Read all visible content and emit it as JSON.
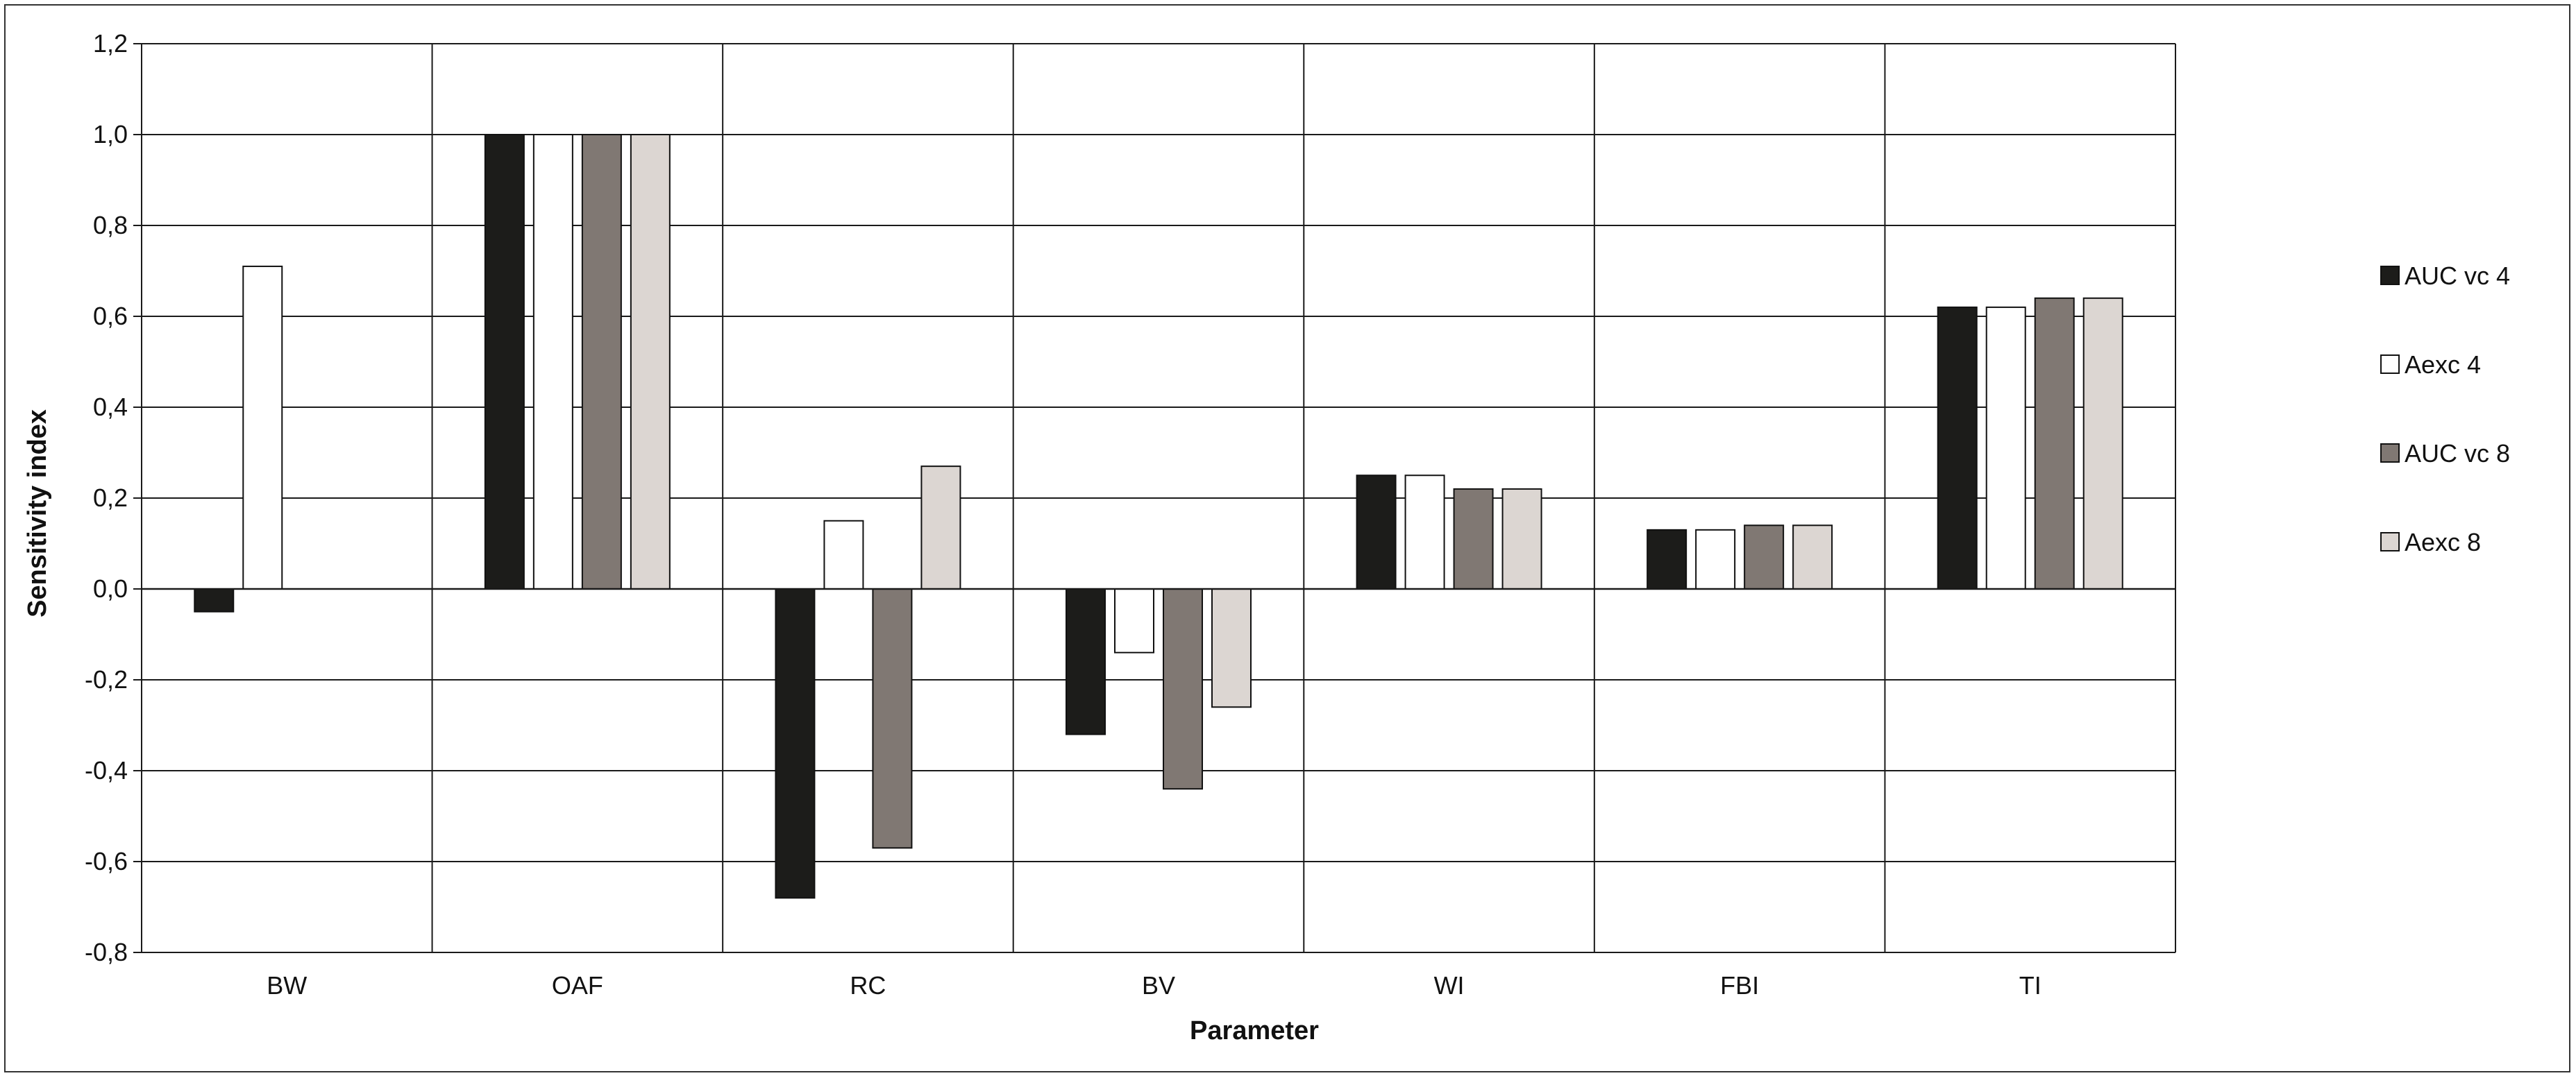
{
  "chart_data": {
    "type": "bar",
    "title": "",
    "xlabel": "Parameter",
    "ylabel": "Sensitivity index",
    "ylim": [
      -0.8,
      1.2
    ],
    "yticks": [
      -0.8,
      -0.6,
      -0.4,
      -0.2,
      0.0,
      0.2,
      0.4,
      0.6,
      0.8,
      1.0,
      1.2
    ],
    "ytick_labels": [
      "-0,8",
      "-0,6",
      "-0,4",
      "-0,2",
      "0,0",
      "0,2",
      "0,4",
      "0,6",
      "0,8",
      "1,0",
      "1,2"
    ],
    "grid": true,
    "legend_position": "right",
    "categories": [
      "BW",
      "OAF",
      "RC",
      "BV",
      "WI",
      "FBI",
      "TI"
    ],
    "series": [
      {
        "name": "AUC vc 4",
        "color": "#1c1c1a",
        "values": [
          -0.05,
          1.0,
          -0.68,
          -0.32,
          0.25,
          0.13,
          0.62
        ]
      },
      {
        "name": "Aexc 4",
        "color": "#ffffff",
        "values": [
          0.71,
          1.0,
          0.15,
          -0.14,
          0.25,
          0.13,
          0.62
        ]
      },
      {
        "name": "AUC vc 8",
        "color": "#807873",
        "values": [
          null,
          1.0,
          -0.57,
          -0.44,
          0.22,
          0.14,
          0.64
        ]
      },
      {
        "name": "Aexc 8",
        "color": "#dcd6d2",
        "values": [
          null,
          1.0,
          0.27,
          -0.26,
          0.22,
          0.14,
          0.64
        ]
      }
    ]
  }
}
